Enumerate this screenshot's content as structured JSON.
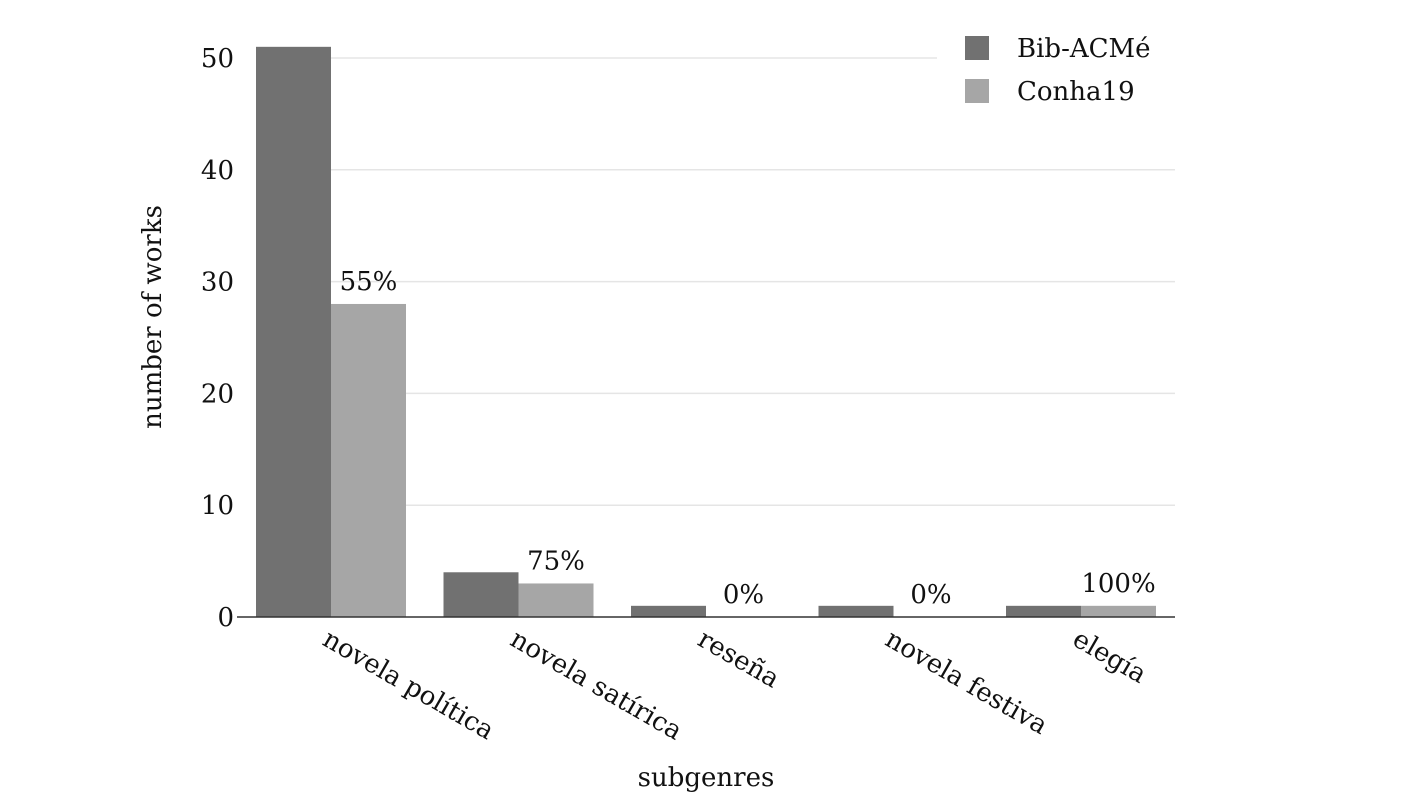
{
  "chart_data": {
    "type": "bar",
    "categories": [
      "novela política",
      "novela satírica",
      "reseña",
      "novela festiva",
      "elegía"
    ],
    "series": [
      {
        "name": "Bib-ACMé",
        "values": [
          51,
          4,
          1,
          1,
          1
        ],
        "color": "#717171"
      },
      {
        "name": "Conha19",
        "values": [
          28,
          3,
          0,
          0,
          1
        ],
        "color": "#a6a6a6"
      }
    ],
    "bar_labels": [
      "55%",
      "75%",
      "0%",
      "0%",
      "100%"
    ],
    "xlabel": "subgenres",
    "ylabel": "number of works",
    "ylim": [
      0,
      51.5
    ],
    "yticks": [
      0,
      10,
      20,
      30,
      40,
      50
    ],
    "grid": "horizontal",
    "legend_position": "top-right"
  }
}
